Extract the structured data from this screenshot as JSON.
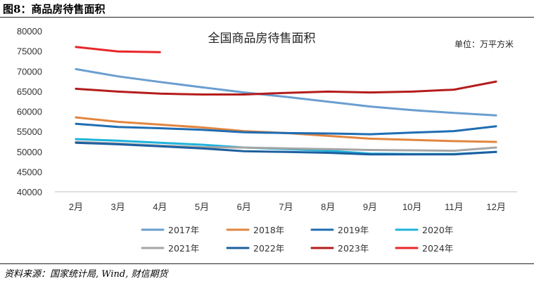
{
  "figure": {
    "label": "图8：商品房待售面积",
    "source": "资料来源：国家统计局, Wind, 财信期货"
  },
  "chart_data": {
    "type": "line",
    "title": "全国商品房待售面积",
    "unit_label": "单位：万平方米",
    "categories": [
      "2月",
      "3月",
      "4月",
      "5月",
      "6月",
      "7月",
      "8月",
      "9月",
      "10月",
      "11月",
      "12月"
    ],
    "yticks": [
      40000,
      45000,
      50000,
      55000,
      60000,
      65000,
      70000,
      75000,
      80000
    ],
    "ylim": [
      40000,
      80000
    ],
    "legend_position": "bottom",
    "series": [
      {
        "name": "2017年",
        "color": "#6a9ed0",
        "values": [
          70500,
          68700,
          67300,
          66000,
          64700,
          63600,
          62400,
          61200,
          60300,
          59600,
          59000
        ]
      },
      {
        "name": "2018年",
        "color": "#e2853f",
        "values": [
          58500,
          57400,
          56700,
          56000,
          55100,
          54600,
          53900,
          53200,
          52900,
          52600,
          52400
        ]
      },
      {
        "name": "2019年",
        "color": "#1f6db3",
        "values": [
          56900,
          56100,
          55800,
          55400,
          54800,
          54600,
          54500,
          54300,
          54700,
          55100,
          56300
        ]
      },
      {
        "name": "2020年",
        "color": "#1fb3dc",
        "values": [
          53100,
          52700,
          52200,
          51700,
          51000,
          50600,
          50200,
          49500,
          49400,
          49400,
          49900
        ]
      },
      {
        "name": "2021年",
        "color": "#a5a5a5",
        "values": [
          52400,
          52000,
          51500,
          51100,
          51000,
          50800,
          50600,
          50400,
          50300,
          50200,
          51000
        ]
      },
      {
        "name": "2022年",
        "color": "#1c5f9f",
        "values": [
          52200,
          51800,
          51300,
          50800,
          50100,
          49900,
          49700,
          49300,
          49300,
          49300,
          49900
        ]
      },
      {
        "name": "2023年",
        "color": "#b51c1c",
        "values": [
          65600,
          64900,
          64400,
          64200,
          64200,
          64600,
          64900,
          64700,
          64900,
          65400,
          67400
        ]
      },
      {
        "name": "2024年",
        "color": "#e8262a",
        "values": [
          76000,
          74900,
          74700,
          null,
          null,
          null,
          null,
          null,
          null,
          null,
          null
        ]
      }
    ]
  }
}
